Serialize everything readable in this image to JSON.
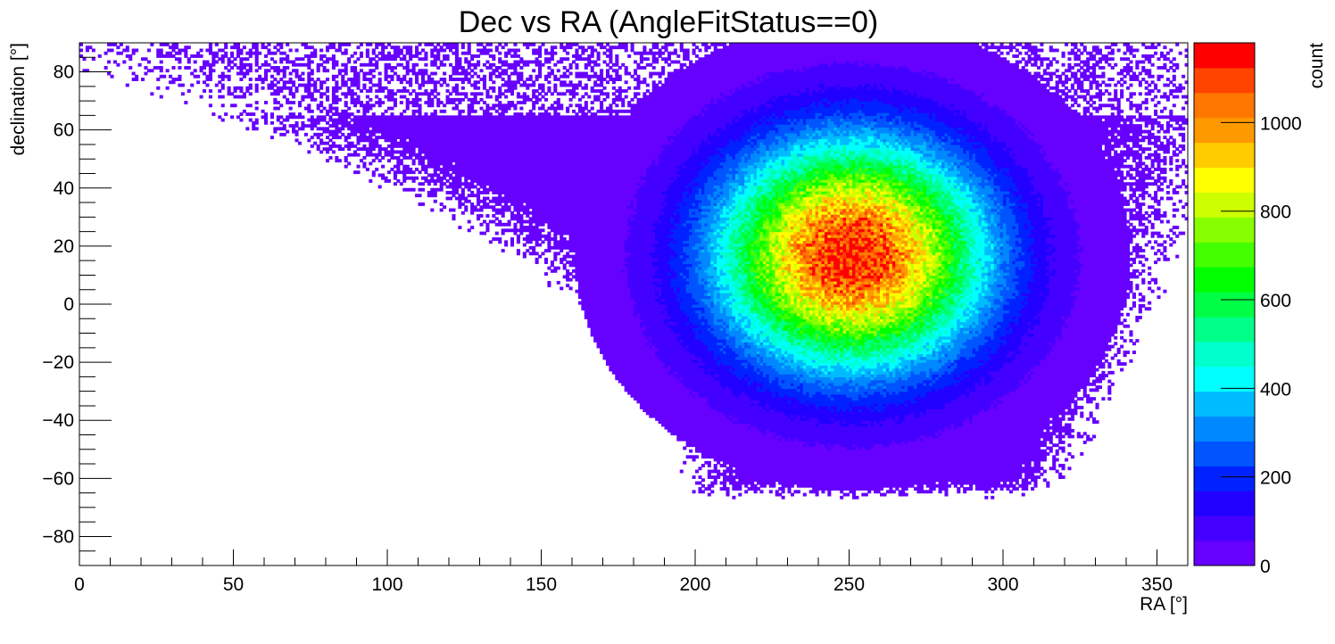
{
  "chart_data": {
    "type": "heatmap",
    "title": "Dec vs RA (AngleFitStatus==0)",
    "xlabel": "RA [°]",
    "ylabel": "declination [°]",
    "zlabel": "count",
    "xlim": [
      0,
      360
    ],
    "ylim": [
      -90,
      90
    ],
    "zlim": [
      0,
      1180
    ],
    "x_ticks": [
      0,
      50,
      100,
      150,
      200,
      250,
      300,
      350
    ],
    "y_ticks": [
      -80,
      -60,
      -40,
      -20,
      0,
      20,
      40,
      60,
      80
    ],
    "z_ticks": [
      0,
      200,
      400,
      600,
      800,
      1000
    ],
    "bins": {
      "x": 360,
      "y": 180
    },
    "peak": {
      "ra": 251,
      "dec": 17,
      "count": 1150
    },
    "core_width": {
      "ra": 30,
      "dec": 27
    },
    "occupied_region": {
      "dec_min": -67,
      "dec_max": 90,
      "ra_min_at_dec_min": 205,
      "ra_max_at_dec_min": 300,
      "ra_min_at_dec_max": 0,
      "ra_max_at_dec_max": 360
    },
    "palette": [
      "#6600ff",
      "#4400ff",
      "#2200ff",
      "#0022ff",
      "#0055ff",
      "#0088ff",
      "#00bbff",
      "#00ffff",
      "#00ffcc",
      "#00ff88",
      "#00ff44",
      "#00ff00",
      "#44ff00",
      "#88ff00",
      "#ccff00",
      "#ffff00",
      "#ffcc00",
      "#ff9900",
      "#ff7700",
      "#ff4400",
      "#ff0000"
    ],
    "grid": false,
    "legend": "color bar on right"
  }
}
